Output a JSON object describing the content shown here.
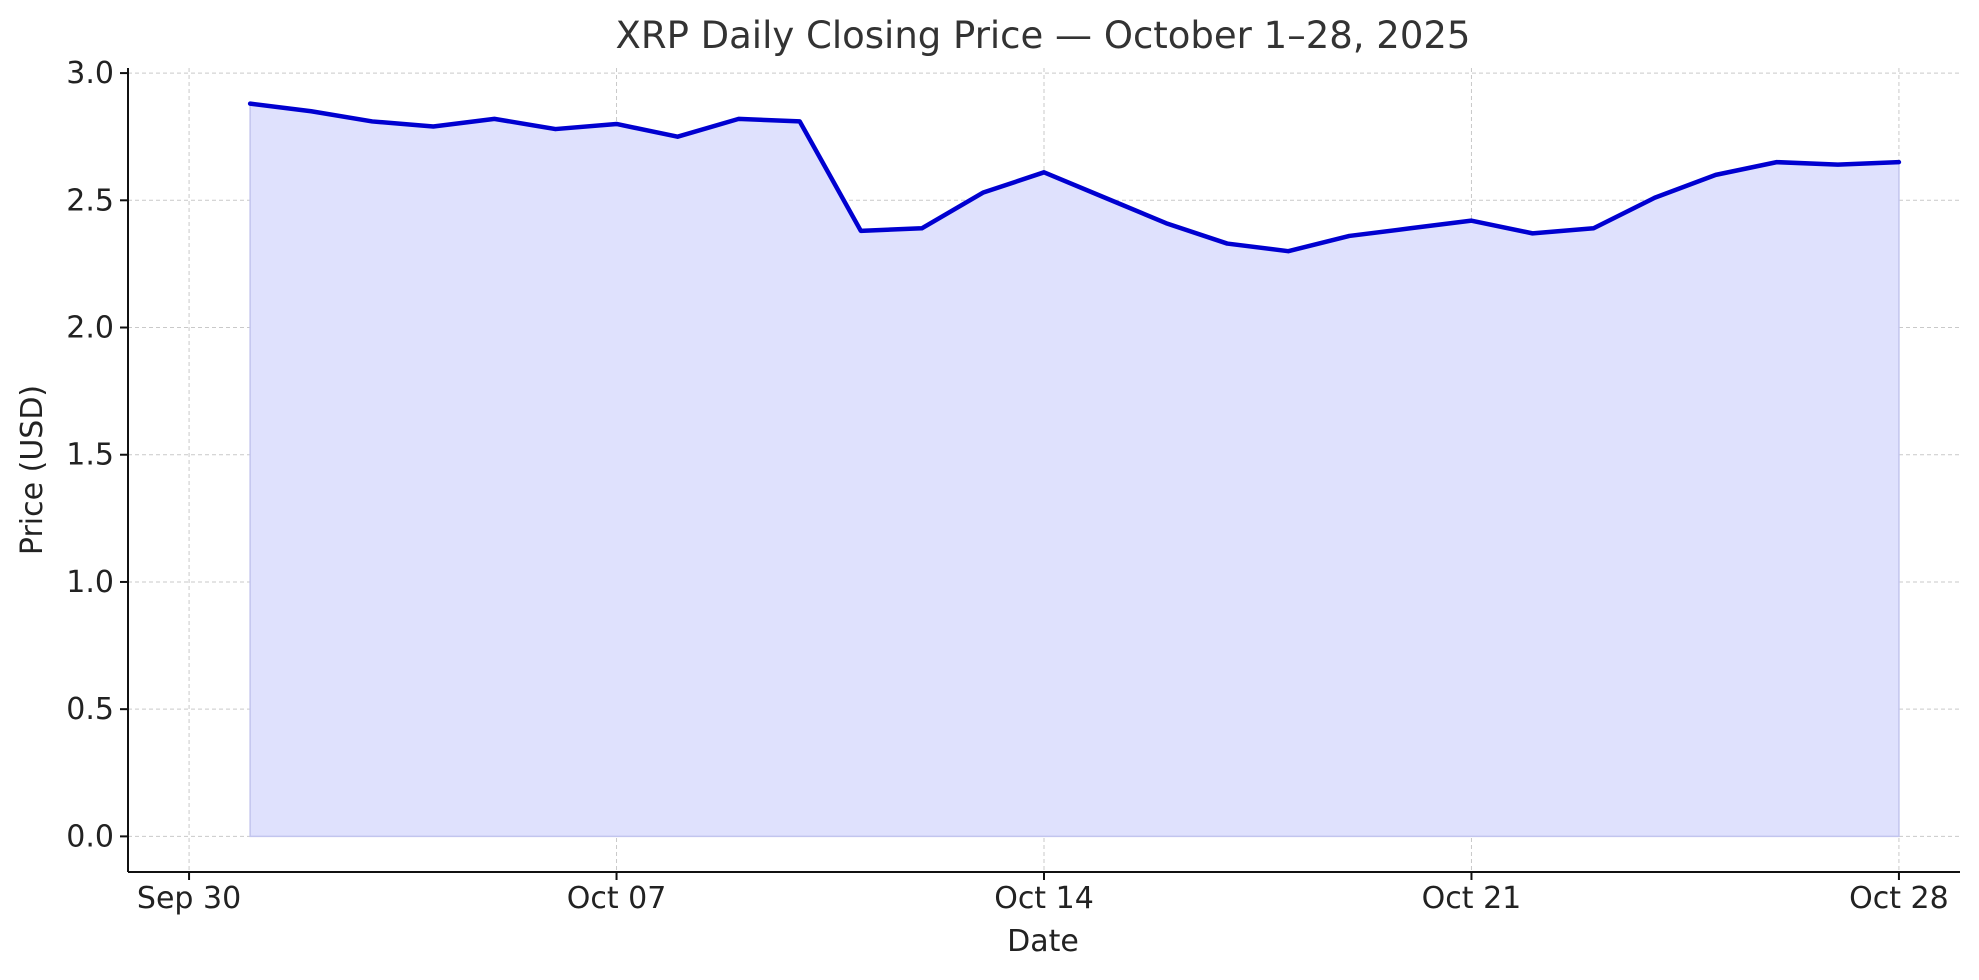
{
  "chart_data": {
    "type": "area",
    "title": "XRP Daily Closing Price — October 1–28, 2025",
    "xlabel": "Date",
    "ylabel": "Price (USD)",
    "x": [
      "2025-10-01",
      "2025-10-02",
      "2025-10-03",
      "2025-10-04",
      "2025-10-05",
      "2025-10-06",
      "2025-10-07",
      "2025-10-08",
      "2025-10-09",
      "2025-10-10",
      "2025-10-11",
      "2025-10-12",
      "2025-10-13",
      "2025-10-14",
      "2025-10-15",
      "2025-10-16",
      "2025-10-17",
      "2025-10-18",
      "2025-10-19",
      "2025-10-20",
      "2025-10-21",
      "2025-10-22",
      "2025-10-23",
      "2025-10-24",
      "2025-10-25",
      "2025-10-26",
      "2025-10-27",
      "2025-10-28"
    ],
    "series": [
      {
        "values": [
          2.88,
          2.85,
          2.81,
          2.79,
          2.82,
          2.78,
          2.8,
          2.75,
          2.82,
          2.81,
          2.38,
          2.39,
          2.53,
          2.61,
          2.51,
          2.41,
          2.33,
          2.3,
          2.36,
          2.39,
          2.42,
          2.37,
          2.39,
          2.51,
          2.6,
          2.65,
          2.64,
          2.65
        ],
        "line_color": "#0000d0",
        "fill_color": "#dfe1fd"
      }
    ],
    "x_ticks": [
      {
        "date": "2025-09-30",
        "label": "Sep 30"
      },
      {
        "date": "2025-10-07",
        "label": "Oct 07"
      },
      {
        "date": "2025-10-14",
        "label": "Oct 14"
      },
      {
        "date": "2025-10-21",
        "label": "Oct 21"
      },
      {
        "date": "2025-10-28",
        "label": "Oct 28"
      }
    ],
    "y_ticks": [
      {
        "value": 0.0,
        "label": "0.0"
      },
      {
        "value": 0.5,
        "label": "0.5"
      },
      {
        "value": 1.0,
        "label": "1.0"
      },
      {
        "value": 1.5,
        "label": "1.5"
      },
      {
        "value": 2.0,
        "label": "2.0"
      },
      {
        "value": 2.5,
        "label": "2.5"
      },
      {
        "value": 3.0,
        "label": "3.0"
      }
    ],
    "xlim": [
      "2025-09-29",
      "2025-10-29"
    ],
    "ylim": [
      -0.14,
      3.02
    ],
    "grid": true,
    "legend": false
  }
}
